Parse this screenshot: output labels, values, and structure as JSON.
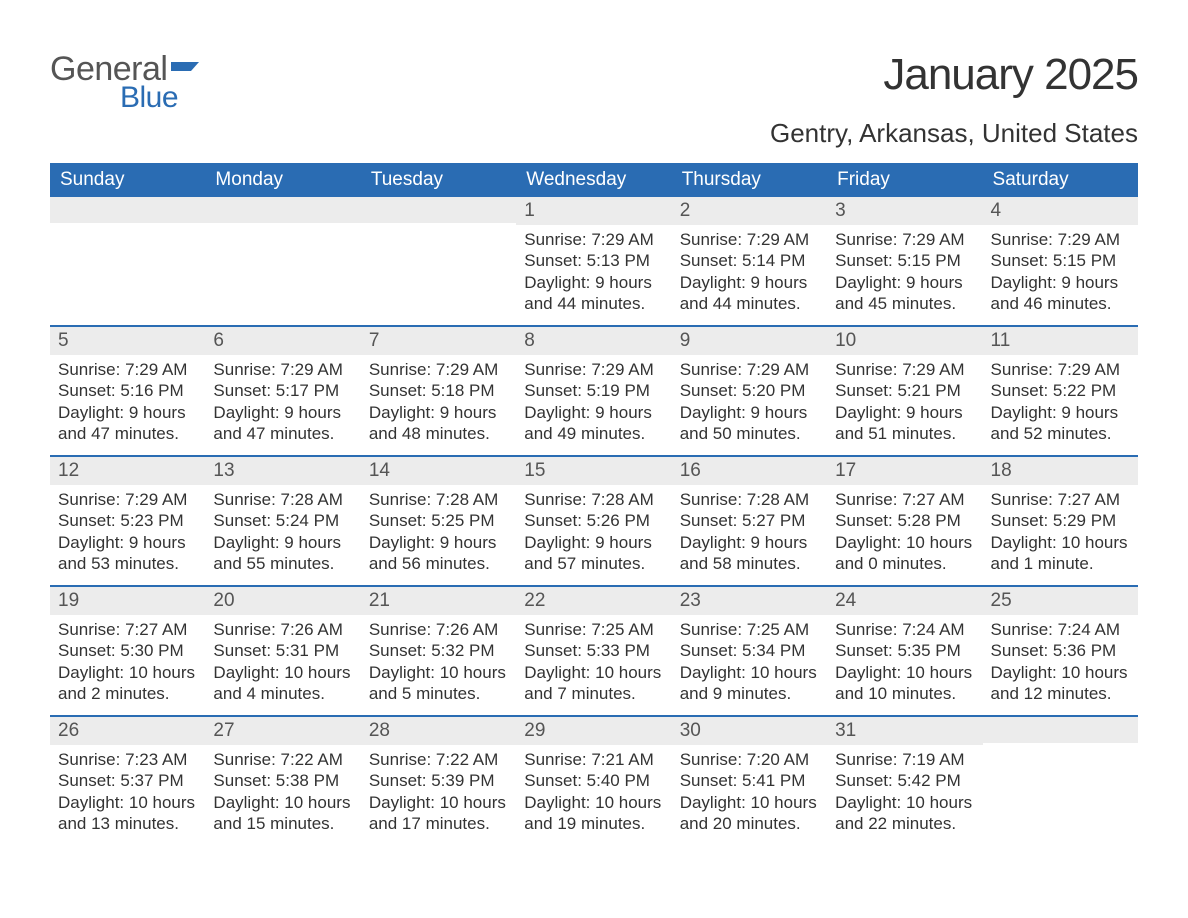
{
  "brand": {
    "text_general": "General",
    "text_blue": "Blue",
    "flag_color": "#2a6cb3",
    "general_color": "#555555"
  },
  "title": "January 2025",
  "location": "Gentry, Arkansas, United States",
  "colors": {
    "header_bg": "#2a6cb3",
    "header_text": "#ffffff",
    "daynum_bg": "#ececec",
    "week_border": "#2a6cb3",
    "body_text": "#333333",
    "page_bg": "#ffffff"
  },
  "fonts": {
    "title_size_pt": 33,
    "location_size_pt": 20,
    "weekday_size_pt": 14,
    "daynum_size_pt": 14,
    "detail_size_pt": 13
  },
  "weekdays": [
    "Sunday",
    "Monday",
    "Tuesday",
    "Wednesday",
    "Thursday",
    "Friday",
    "Saturday"
  ],
  "weeks": [
    [
      null,
      null,
      null,
      {
        "n": "1",
        "sr": "Sunrise: 7:29 AM",
        "ss": "Sunset: 5:13 PM",
        "d1": "Daylight: 9 hours",
        "d2": "and 44 minutes."
      },
      {
        "n": "2",
        "sr": "Sunrise: 7:29 AM",
        "ss": "Sunset: 5:14 PM",
        "d1": "Daylight: 9 hours",
        "d2": "and 44 minutes."
      },
      {
        "n": "3",
        "sr": "Sunrise: 7:29 AM",
        "ss": "Sunset: 5:15 PM",
        "d1": "Daylight: 9 hours",
        "d2": "and 45 minutes."
      },
      {
        "n": "4",
        "sr": "Sunrise: 7:29 AM",
        "ss": "Sunset: 5:15 PM",
        "d1": "Daylight: 9 hours",
        "d2": "and 46 minutes."
      }
    ],
    [
      {
        "n": "5",
        "sr": "Sunrise: 7:29 AM",
        "ss": "Sunset: 5:16 PM",
        "d1": "Daylight: 9 hours",
        "d2": "and 47 minutes."
      },
      {
        "n": "6",
        "sr": "Sunrise: 7:29 AM",
        "ss": "Sunset: 5:17 PM",
        "d1": "Daylight: 9 hours",
        "d2": "and 47 minutes."
      },
      {
        "n": "7",
        "sr": "Sunrise: 7:29 AM",
        "ss": "Sunset: 5:18 PM",
        "d1": "Daylight: 9 hours",
        "d2": "and 48 minutes."
      },
      {
        "n": "8",
        "sr": "Sunrise: 7:29 AM",
        "ss": "Sunset: 5:19 PM",
        "d1": "Daylight: 9 hours",
        "d2": "and 49 minutes."
      },
      {
        "n": "9",
        "sr": "Sunrise: 7:29 AM",
        "ss": "Sunset: 5:20 PM",
        "d1": "Daylight: 9 hours",
        "d2": "and 50 minutes."
      },
      {
        "n": "10",
        "sr": "Sunrise: 7:29 AM",
        "ss": "Sunset: 5:21 PM",
        "d1": "Daylight: 9 hours",
        "d2": "and 51 minutes."
      },
      {
        "n": "11",
        "sr": "Sunrise: 7:29 AM",
        "ss": "Sunset: 5:22 PM",
        "d1": "Daylight: 9 hours",
        "d2": "and 52 minutes."
      }
    ],
    [
      {
        "n": "12",
        "sr": "Sunrise: 7:29 AM",
        "ss": "Sunset: 5:23 PM",
        "d1": "Daylight: 9 hours",
        "d2": "and 53 minutes."
      },
      {
        "n": "13",
        "sr": "Sunrise: 7:28 AM",
        "ss": "Sunset: 5:24 PM",
        "d1": "Daylight: 9 hours",
        "d2": "and 55 minutes."
      },
      {
        "n": "14",
        "sr": "Sunrise: 7:28 AM",
        "ss": "Sunset: 5:25 PM",
        "d1": "Daylight: 9 hours",
        "d2": "and 56 minutes."
      },
      {
        "n": "15",
        "sr": "Sunrise: 7:28 AM",
        "ss": "Sunset: 5:26 PM",
        "d1": "Daylight: 9 hours",
        "d2": "and 57 minutes."
      },
      {
        "n": "16",
        "sr": "Sunrise: 7:28 AM",
        "ss": "Sunset: 5:27 PM",
        "d1": "Daylight: 9 hours",
        "d2": "and 58 minutes."
      },
      {
        "n": "17",
        "sr": "Sunrise: 7:27 AM",
        "ss": "Sunset: 5:28 PM",
        "d1": "Daylight: 10 hours",
        "d2": "and 0 minutes."
      },
      {
        "n": "18",
        "sr": "Sunrise: 7:27 AM",
        "ss": "Sunset: 5:29 PM",
        "d1": "Daylight: 10 hours",
        "d2": "and 1 minute."
      }
    ],
    [
      {
        "n": "19",
        "sr": "Sunrise: 7:27 AM",
        "ss": "Sunset: 5:30 PM",
        "d1": "Daylight: 10 hours",
        "d2": "and 2 minutes."
      },
      {
        "n": "20",
        "sr": "Sunrise: 7:26 AM",
        "ss": "Sunset: 5:31 PM",
        "d1": "Daylight: 10 hours",
        "d2": "and 4 minutes."
      },
      {
        "n": "21",
        "sr": "Sunrise: 7:26 AM",
        "ss": "Sunset: 5:32 PM",
        "d1": "Daylight: 10 hours",
        "d2": "and 5 minutes."
      },
      {
        "n": "22",
        "sr": "Sunrise: 7:25 AM",
        "ss": "Sunset: 5:33 PM",
        "d1": "Daylight: 10 hours",
        "d2": "and 7 minutes."
      },
      {
        "n": "23",
        "sr": "Sunrise: 7:25 AM",
        "ss": "Sunset: 5:34 PM",
        "d1": "Daylight: 10 hours",
        "d2": "and 9 minutes."
      },
      {
        "n": "24",
        "sr": "Sunrise: 7:24 AM",
        "ss": "Sunset: 5:35 PM",
        "d1": "Daylight: 10 hours",
        "d2": "and 10 minutes."
      },
      {
        "n": "25",
        "sr": "Sunrise: 7:24 AM",
        "ss": "Sunset: 5:36 PM",
        "d1": "Daylight: 10 hours",
        "d2": "and 12 minutes."
      }
    ],
    [
      {
        "n": "26",
        "sr": "Sunrise: 7:23 AM",
        "ss": "Sunset: 5:37 PM",
        "d1": "Daylight: 10 hours",
        "d2": "and 13 minutes."
      },
      {
        "n": "27",
        "sr": "Sunrise: 7:22 AM",
        "ss": "Sunset: 5:38 PM",
        "d1": "Daylight: 10 hours",
        "d2": "and 15 minutes."
      },
      {
        "n": "28",
        "sr": "Sunrise: 7:22 AM",
        "ss": "Sunset: 5:39 PM",
        "d1": "Daylight: 10 hours",
        "d2": "and 17 minutes."
      },
      {
        "n": "29",
        "sr": "Sunrise: 7:21 AM",
        "ss": "Sunset: 5:40 PM",
        "d1": "Daylight: 10 hours",
        "d2": "and 19 minutes."
      },
      {
        "n": "30",
        "sr": "Sunrise: 7:20 AM",
        "ss": "Sunset: 5:41 PM",
        "d1": "Daylight: 10 hours",
        "d2": "and 20 minutes."
      },
      {
        "n": "31",
        "sr": "Sunrise: 7:19 AM",
        "ss": "Sunset: 5:42 PM",
        "d1": "Daylight: 10 hours",
        "d2": "and 22 minutes."
      },
      null
    ]
  ]
}
